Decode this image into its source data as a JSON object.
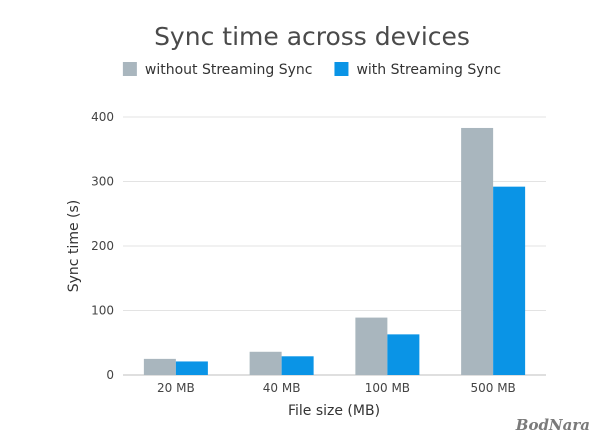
{
  "chart_data": {
    "type": "bar",
    "title": "Sync time across devices",
    "xlabel": "File size (MB)",
    "ylabel": "Sync time (s)",
    "categories": [
      "20 MB",
      "40 MB",
      "100 MB",
      "500 MB"
    ],
    "series": [
      {
        "name": "without Streaming Sync",
        "color": "#a9b6be",
        "values": [
          25,
          36,
          89,
          383
        ]
      },
      {
        "name": "with Streaming Sync",
        "color": "#0a94e6",
        "values": [
          21,
          29,
          63,
          292
        ]
      }
    ],
    "yticks": [
      0,
      100,
      200,
      300,
      400
    ],
    "ylim": [
      0,
      400
    ],
    "grid": true,
    "legend": "top-center"
  },
  "watermark": "BodNara"
}
